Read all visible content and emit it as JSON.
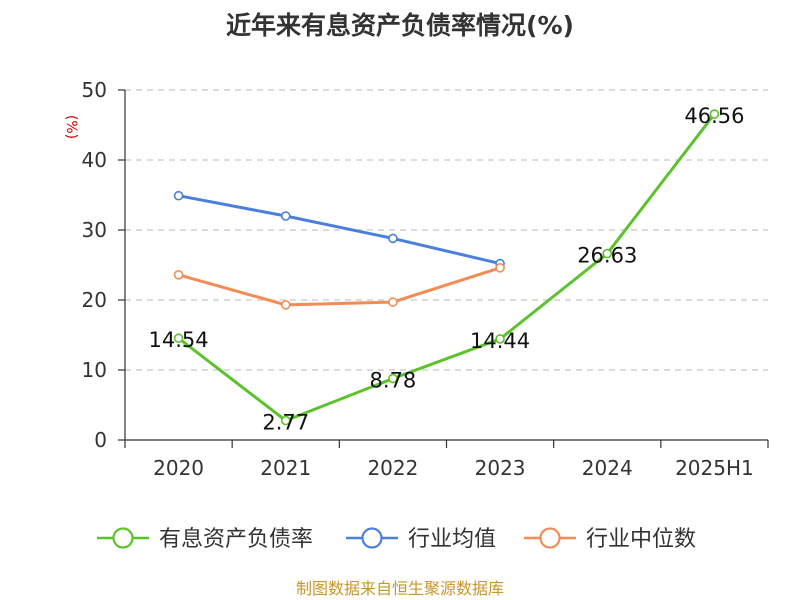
{
  "chart_data": {
    "type": "line",
    "title": "近年来有息资产负债率情况(%)",
    "ylabel": "(%)",
    "xlabel": "",
    "categories": [
      "2020",
      "2021",
      "2022",
      "2023",
      "2024",
      "2025H1"
    ],
    "ylim": [
      0,
      50
    ],
    "yticks": [
      "0",
      "10",
      "20",
      "30",
      "40",
      "50"
    ],
    "grid": true,
    "legend_position": "bottom",
    "series": [
      {
        "name": "有息资产负债率",
        "color": "#5cc22c",
        "values": [
          14.54,
          2.77,
          8.78,
          14.44,
          26.63,
          46.56
        ],
        "data_labels": [
          "14.54",
          "2.77",
          "8.78",
          "14.44",
          "26.63",
          "46.56"
        ]
      },
      {
        "name": "行业均值",
        "color": "#4a7fdc",
        "values": [
          34.9,
          32.0,
          28.8,
          25.2,
          null,
          null
        ]
      },
      {
        "name": "行业中位数",
        "color": "#f28c55",
        "values": [
          23.6,
          19.3,
          19.7,
          24.6,
          null,
          null
        ]
      }
    ]
  },
  "source": "制图数据来自恒生聚源数据库",
  "colors": {
    "title": "#333333",
    "ylabel": "#cc0000",
    "source": "#c8962a",
    "axis": "#333333",
    "grid": "#c8c8c8"
  }
}
